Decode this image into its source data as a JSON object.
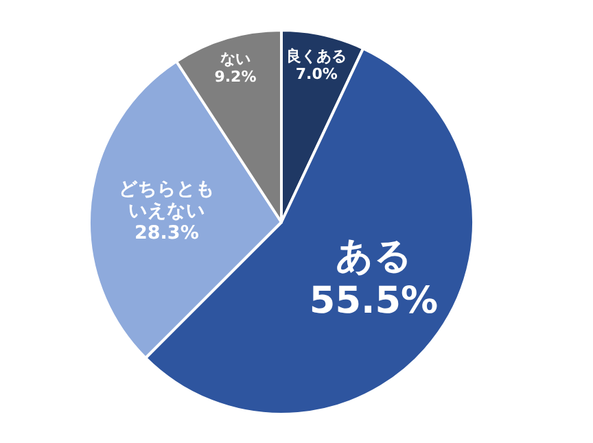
{
  "chart_data": {
    "type": "pie",
    "categories": [
      "良くある",
      "ある",
      "どちらともいえない",
      "ない"
    ],
    "values": [
      7.0,
      55.5,
      28.3,
      9.2
    ],
    "colors": [
      "#1f3864",
      "#2e559f",
      "#8eaadc",
      "#7f7f7f"
    ],
    "value_labels": [
      "7.0%",
      "55.5%",
      "28.3%",
      "9.2%"
    ]
  }
}
